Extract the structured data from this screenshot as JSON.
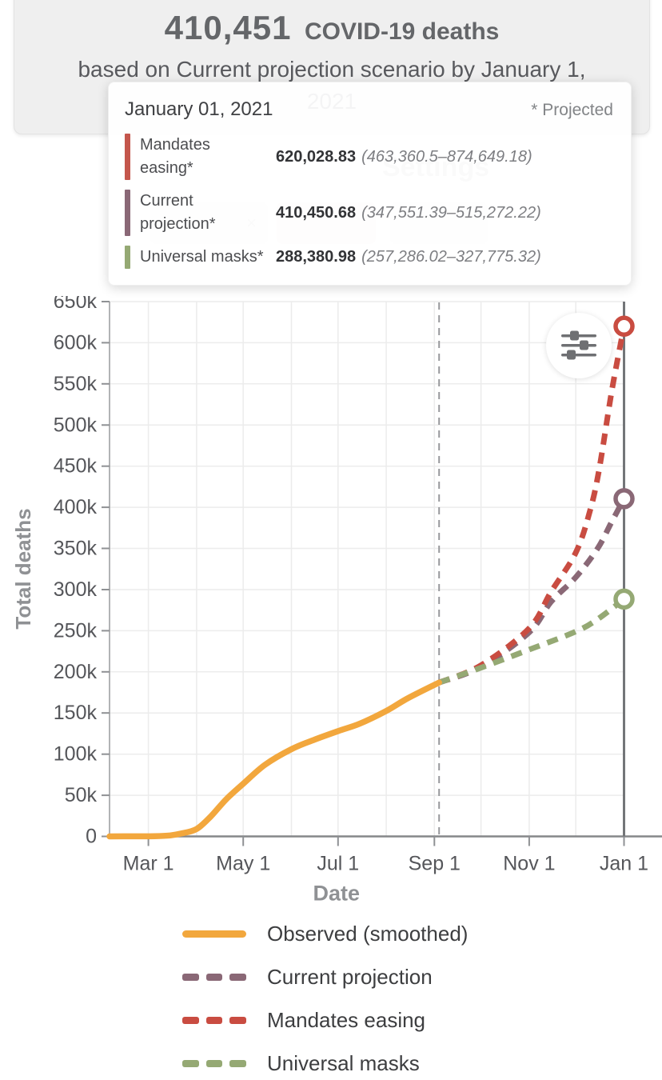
{
  "header": {
    "deaths_count": "410,451",
    "deaths_label": "COVID-19 deaths",
    "subtitle_line1": "based on Current projection scenario by January 1,",
    "subtitle_line2": "2021"
  },
  "ghost": {
    "heading": "Settings",
    "chip_close": "×"
  },
  "tooltip": {
    "date": "January 01, 2021",
    "projected_note": "* Projected",
    "rows": [
      {
        "label": "Mandates easing*",
        "value": "620,028.83",
        "range": "(463,360.5–874,649.18)",
        "color": "#C4564C"
      },
      {
        "label": "Current projection*",
        "value": "410,450.68",
        "range": "(347,551.39–515,272.22)",
        "color": "#8A6876"
      },
      {
        "label": "Universal masks*",
        "value": "288,380.98",
        "range": "(257,286.02–327,775.32)",
        "color": "#95A974"
      }
    ]
  },
  "controls": {
    "settings_icon": "sliders-icon"
  },
  "legend": {
    "items": [
      {
        "label": "Observed (smoothed)",
        "color": "#F2A73D",
        "style": "solid"
      },
      {
        "label": "Current projection",
        "color": "#8A6876",
        "style": "dashed"
      },
      {
        "label": "Mandates easing",
        "color": "#C94C41",
        "style": "dashed"
      },
      {
        "label": "Universal masks",
        "color": "#95A974",
        "style": "dashed"
      }
    ]
  },
  "chart_data": {
    "type": "line",
    "title": "",
    "xlabel": "Date",
    "ylabel": "Total deaths",
    "ylim": [
      0,
      650000
    ],
    "y_tick_step": 50000,
    "x_domain": [
      "2020-02-05",
      "2021-01-01"
    ],
    "x_ticks": [
      {
        "date": "2020-03-01",
        "label": "Mar 1"
      },
      {
        "date": "2020-05-01",
        "label": "May 1"
      },
      {
        "date": "2020-07-01",
        "label": "Jul 1"
      },
      {
        "date": "2020-09-01",
        "label": "Sep 1"
      },
      {
        "date": "2020-11-01",
        "label": "Nov 1"
      },
      {
        "date": "2021-01-01",
        "label": "Jan 1"
      }
    ],
    "x_gridlines": [
      "2020-03-01",
      "2020-04-01",
      "2020-05-01",
      "2020-06-01",
      "2020-07-01",
      "2020-08-01",
      "2020-09-01",
      "2020-10-01",
      "2020-11-01",
      "2020-12-01",
      "2021-01-01"
    ],
    "today_line": "2020-09-04",
    "grid": true,
    "legend_position": "bottom",
    "series": [
      {
        "name": "Current projection",
        "color": "#8A6876",
        "style": "dashed",
        "endpoint_marker": true,
        "points": [
          [
            "2020-09-04",
            187000
          ],
          [
            "2020-10-01",
            206000
          ],
          [
            "2020-11-01",
            248000
          ],
          [
            "2020-11-15",
            285000
          ],
          [
            "2020-12-01",
            315000
          ],
          [
            "2020-12-15",
            350000
          ],
          [
            "2020-12-24",
            382000
          ],
          [
            "2021-01-01",
            410450.68
          ]
        ]
      },
      {
        "name": "Mandates easing",
        "color": "#C94C41",
        "style": "dashed",
        "endpoint_marker": true,
        "points": [
          [
            "2020-09-04",
            187000
          ],
          [
            "2020-10-01",
            208000
          ],
          [
            "2020-11-01",
            253000
          ],
          [
            "2020-11-15",
            297000
          ],
          [
            "2020-12-01",
            345000
          ],
          [
            "2020-12-10",
            395000
          ],
          [
            "2020-12-16",
            446000
          ],
          [
            "2020-12-24",
            540000
          ],
          [
            "2021-01-01",
            620028.83
          ]
        ]
      },
      {
        "name": "Universal masks",
        "color": "#95A974",
        "style": "dashed",
        "endpoint_marker": true,
        "points": [
          [
            "2020-09-04",
            187000
          ],
          [
            "2020-10-01",
            205000
          ],
          [
            "2020-11-01",
            227000
          ],
          [
            "2020-12-01",
            249000
          ],
          [
            "2020-12-15",
            264000
          ],
          [
            "2021-01-01",
            288380.98
          ]
        ]
      },
      {
        "name": "Observed (smoothed)",
        "color": "#F2A73D",
        "style": "solid",
        "endpoint_marker": false,
        "points": [
          [
            "2020-02-05",
            0
          ],
          [
            "2020-02-20",
            100
          ],
          [
            "2020-03-05",
            300
          ],
          [
            "2020-03-15",
            1200
          ],
          [
            "2020-03-22",
            3500
          ],
          [
            "2020-04-01",
            9000
          ],
          [
            "2020-04-10",
            24000
          ],
          [
            "2020-04-20",
            45000
          ],
          [
            "2020-05-01",
            64000
          ],
          [
            "2020-05-15",
            87000
          ],
          [
            "2020-06-01",
            106000
          ],
          [
            "2020-06-15",
            117000
          ],
          [
            "2020-07-01",
            128000
          ],
          [
            "2020-07-15",
            137000
          ],
          [
            "2020-08-01",
            152500
          ],
          [
            "2020-08-15",
            168000
          ],
          [
            "2020-09-04",
            187000
          ]
        ]
      }
    ]
  }
}
